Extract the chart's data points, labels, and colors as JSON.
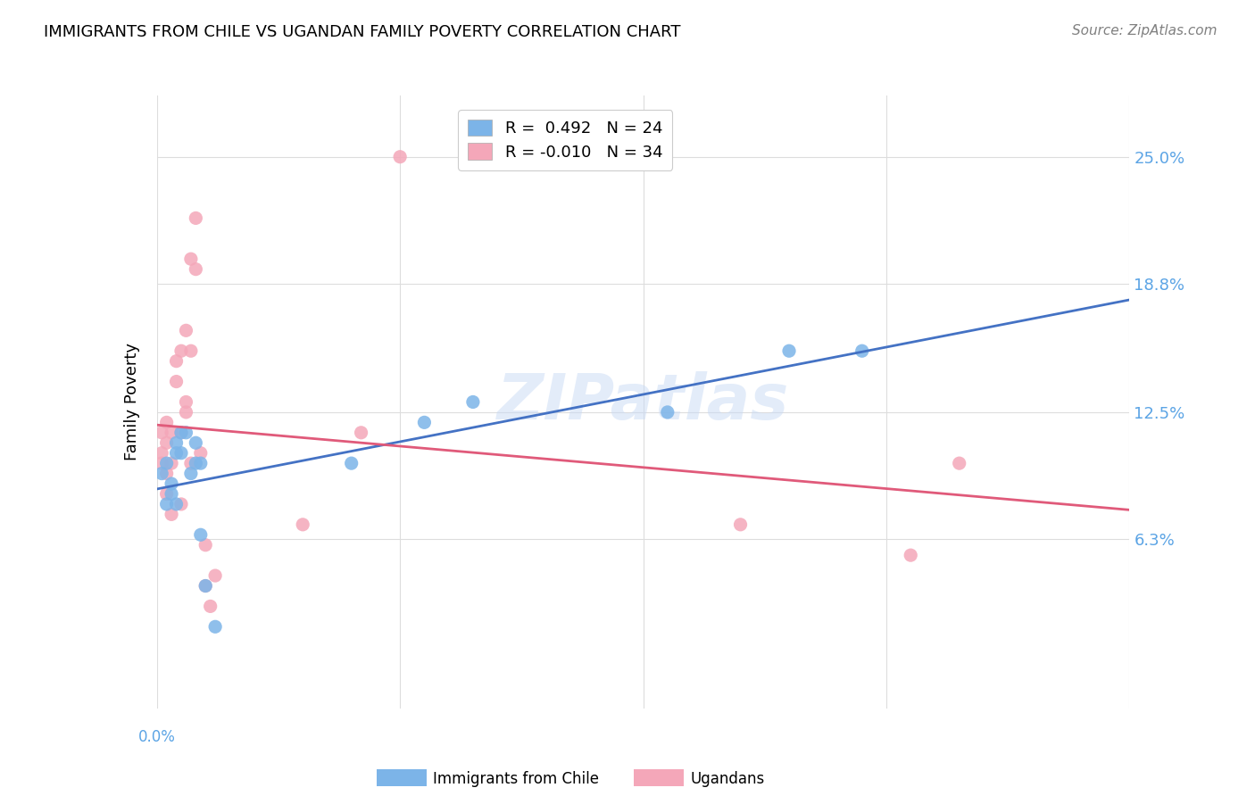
{
  "title": "IMMIGRANTS FROM CHILE VS UGANDAN FAMILY POVERTY CORRELATION CHART",
  "source": "Source: ZipAtlas.com",
  "ylabel": "Family Poverty",
  "ytick_labels": [
    "25.0%",
    "18.8%",
    "12.5%",
    "6.3%"
  ],
  "ytick_values": [
    0.25,
    0.188,
    0.125,
    0.063
  ],
  "xlim": [
    0.0,
    0.2
  ],
  "ylim": [
    -0.02,
    0.28
  ],
  "legend_line1": "R =  0.492   N = 24",
  "legend_line2": "R = -0.010   N = 34",
  "watermark": "ZIPatlas",
  "chile_color": "#7cb4e8",
  "uganda_color": "#f4a7b9",
  "chile_line_color": "#4472c4",
  "uganda_line_color": "#e05a7a",
  "chile_scatter_x": [
    0.001,
    0.002,
    0.002,
    0.003,
    0.003,
    0.004,
    0.004,
    0.004,
    0.005,
    0.005,
    0.006,
    0.007,
    0.008,
    0.008,
    0.009,
    0.009,
    0.01,
    0.012,
    0.04,
    0.055,
    0.065,
    0.105,
    0.13,
    0.145
  ],
  "chile_scatter_y": [
    0.095,
    0.08,
    0.1,
    0.09,
    0.085,
    0.105,
    0.11,
    0.08,
    0.115,
    0.105,
    0.115,
    0.095,
    0.11,
    0.1,
    0.1,
    0.065,
    0.04,
    0.02,
    0.1,
    0.12,
    0.13,
    0.125,
    0.155,
    0.155
  ],
  "uganda_scatter_x": [
    0.001,
    0.001,
    0.001,
    0.002,
    0.002,
    0.002,
    0.002,
    0.003,
    0.003,
    0.003,
    0.004,
    0.004,
    0.005,
    0.005,
    0.005,
    0.006,
    0.006,
    0.006,
    0.007,
    0.007,
    0.007,
    0.008,
    0.008,
    0.009,
    0.01,
    0.01,
    0.011,
    0.012,
    0.03,
    0.042,
    0.05,
    0.12,
    0.155,
    0.165
  ],
  "uganda_scatter_y": [
    0.115,
    0.105,
    0.1,
    0.12,
    0.11,
    0.095,
    0.085,
    0.115,
    0.1,
    0.075,
    0.15,
    0.14,
    0.155,
    0.115,
    0.08,
    0.165,
    0.13,
    0.125,
    0.2,
    0.155,
    0.1,
    0.195,
    0.22,
    0.105,
    0.06,
    0.04,
    0.03,
    0.045,
    0.07,
    0.115,
    0.25,
    0.07,
    0.055,
    0.1
  ],
  "grid_color": "#dddddd",
  "background_color": "#ffffff",
  "xtick_positions": [
    0.0,
    0.05,
    0.1,
    0.15,
    0.2
  ]
}
